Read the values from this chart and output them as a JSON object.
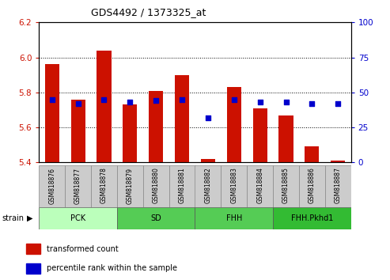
{
  "title": "GDS4492 / 1373325_at",
  "samples": [
    "GSM818876",
    "GSM818877",
    "GSM818878",
    "GSM818879",
    "GSM818880",
    "GSM818881",
    "GSM818882",
    "GSM818883",
    "GSM818884",
    "GSM818885",
    "GSM818886",
    "GSM818887"
  ],
  "transformed_count": [
    5.96,
    5.76,
    6.04,
    5.73,
    5.81,
    5.9,
    5.42,
    5.83,
    5.71,
    5.67,
    5.49,
    5.41
  ],
  "percentile_rank": [
    45,
    42,
    45,
    43,
    44,
    45,
    32,
    45,
    43,
    43,
    42,
    42
  ],
  "bar_color": "#cc1100",
  "dot_color": "#0000cc",
  "ylim_left": [
    5.4,
    6.2
  ],
  "ylim_right": [
    0,
    100
  ],
  "yticks_left": [
    5.4,
    5.6,
    5.8,
    6.0,
    6.2
  ],
  "yticks_right": [
    0,
    25,
    50,
    75,
    100
  ],
  "groups": [
    {
      "label": "PCK",
      "start": 0,
      "end": 2,
      "color": "#bbffbb"
    },
    {
      "label": "SD",
      "start": 3,
      "end": 5,
      "color": "#55cc55"
    },
    {
      "label": "FHH",
      "start": 6,
      "end": 8,
      "color": "#55cc55"
    },
    {
      "label": "FHH.Pkhd1",
      "start": 9,
      "end": 11,
      "color": "#33bb33"
    }
  ],
  "bar_width": 0.55,
  "base_value": 5.4,
  "legend_items": [
    {
      "label": "transformed count",
      "color": "#cc1100"
    },
    {
      "label": "percentile rank within the sample",
      "color": "#0000cc"
    }
  ],
  "tick_label_color_left": "#cc1100",
  "tick_label_color_right": "#0000cc",
  "xticklabel_bg": "#cccccc",
  "strain_label": "strain"
}
